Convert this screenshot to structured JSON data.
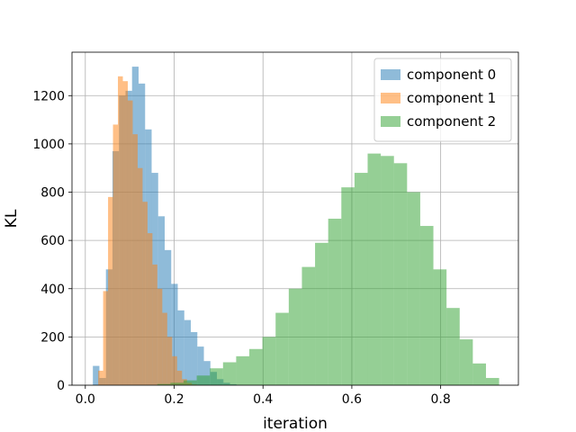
{
  "chart_data": {
    "type": "histogram",
    "xlabel": "iteration",
    "ylabel": "KL",
    "xlim": [
      -0.03,
      0.975
    ],
    "ylim": [
      0,
      1380
    ],
    "x_ticks": [
      0.0,
      0.2,
      0.4,
      0.6,
      0.8
    ],
    "x_tick_labels": [
      "0.0",
      "0.2",
      "0.4",
      "0.6",
      "0.8"
    ],
    "y_ticks": [
      0,
      200,
      400,
      600,
      800,
      1000,
      1200
    ],
    "y_tick_labels": [
      "0",
      "200",
      "400",
      "600",
      "800",
      "1000",
      "1200"
    ],
    "grid": true,
    "legend_position": "top-right",
    "series": [
      {
        "name": "component 0",
        "color": "#1f77b4",
        "alpha": 0.5,
        "bin_start": 0.017,
        "bin_width": 0.0147,
        "values": [
          80,
          30,
          480,
          970,
          1200,
          1220,
          1320,
          1250,
          1060,
          880,
          700,
          560,
          420,
          310,
          270,
          220,
          160,
          100,
          55,
          25,
          10,
          4,
          1
        ]
      },
      {
        "name": "component 1",
        "color": "#ff7f0e",
        "alpha": 0.5,
        "bin_start": 0.029,
        "bin_width": 0.0111,
        "values": [
          60,
          390,
          780,
          1080,
          1280,
          1260,
          1180,
          1040,
          900,
          760,
          630,
          500,
          400,
          300,
          200,
          120,
          60,
          25,
          10,
          3
        ]
      },
      {
        "name": "component 2",
        "color": "#2ca02c",
        "alpha": 0.5,
        "bin_start": 0.162,
        "bin_width": 0.0296,
        "values": [
          5,
          10,
          20,
          40,
          70,
          95,
          120,
          150,
          200,
          300,
          400,
          490,
          590,
          690,
          820,
          880,
          960,
          950,
          920,
          800,
          660,
          480,
          320,
          190,
          90,
          30
        ]
      }
    ]
  }
}
